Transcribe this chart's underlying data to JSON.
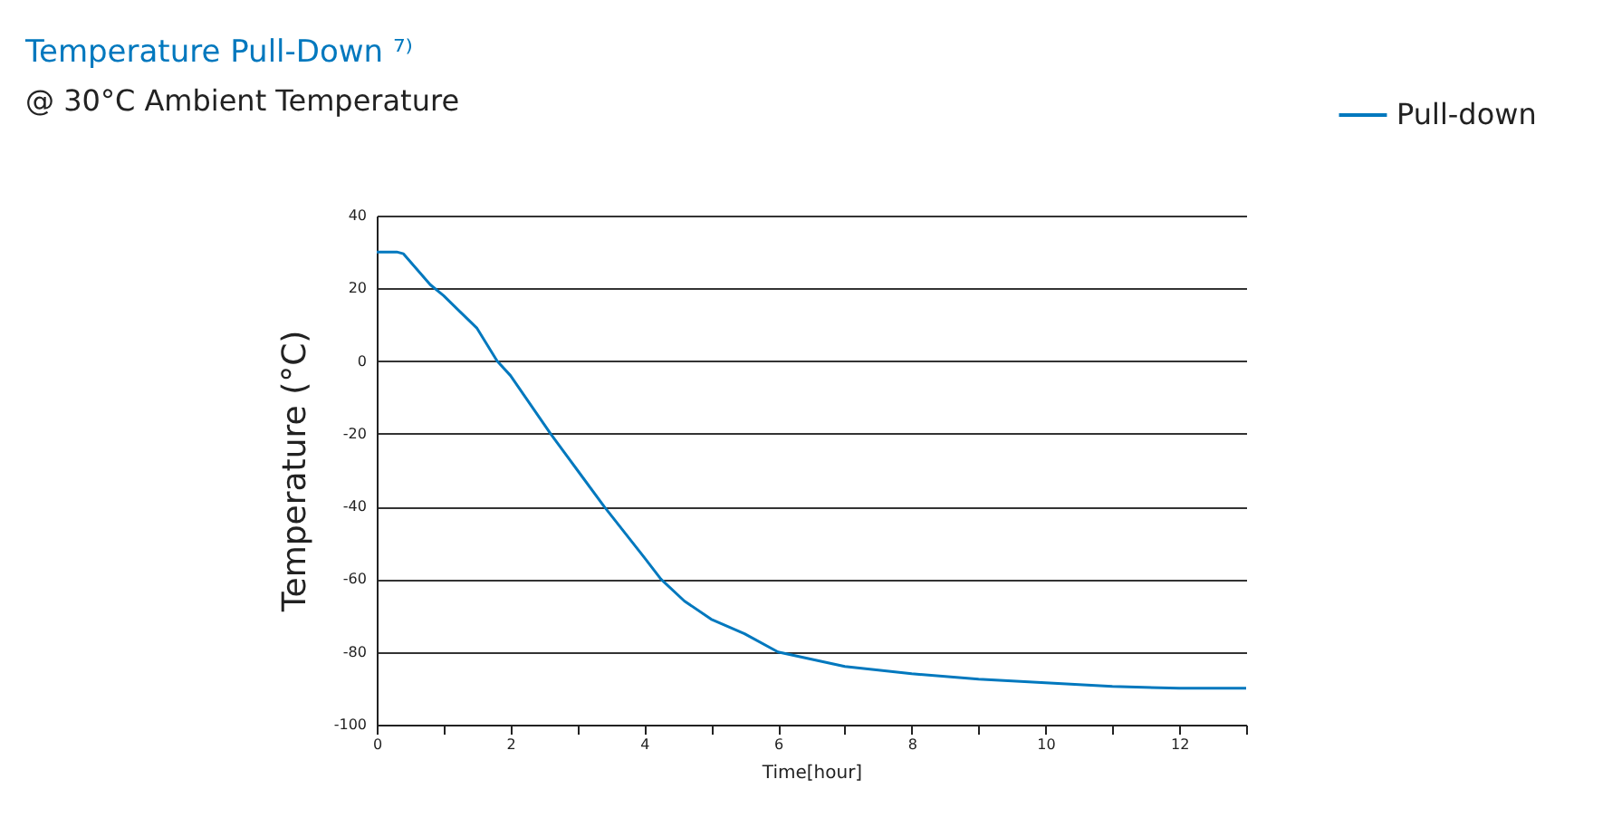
{
  "chart_data": {
    "type": "line",
    "title": "Temperature Pull-Down ⁷⁾",
    "subtitle": "@ 30°C Ambient Temperature",
    "xlabel": "Time[hour]",
    "ylabel": "Temperature (°C)",
    "xlim": [
      0,
      13
    ],
    "ylim": [
      -100,
      40
    ],
    "xticks": [
      0,
      {
        "value": 1,
        "label": null
      },
      2,
      {
        "value": 3,
        "label": null
      },
      4,
      {
        "value": 5,
        "label": null
      },
      6,
      {
        "value": 7,
        "label": null
      },
      8,
      {
        "value": 9,
        "label": null
      },
      10,
      {
        "value": 11,
        "label": null
      },
      12,
      {
        "value": 13,
        "label": null
      }
    ],
    "yticks": [
      -100,
      -80,
      -60,
      -40,
      -20,
      0,
      20,
      40
    ],
    "grid": "y",
    "legend": "top right",
    "marker": "none",
    "line_style": "solid",
    "series": [
      {
        "name": "Pull-down",
        "color": "#0078be",
        "x": [
          0,
          0.3,
          0.4,
          0.8,
          1,
          1.5,
          1.8,
          2,
          2.6,
          3,
          3.4,
          4,
          4.25,
          4.6,
          5,
          5.5,
          6,
          7,
          8,
          9,
          10,
          11,
          12,
          13
        ],
        "values": [
          30,
          30,
          29.5,
          21,
          18,
          9,
          0,
          -4,
          -20,
          -30,
          -40,
          -54,
          -60,
          -66,
          -71,
          -75,
          -80,
          -84,
          -86,
          -87.5,
          -88.5,
          -89.5,
          -90,
          -90
        ]
      }
    ]
  }
}
